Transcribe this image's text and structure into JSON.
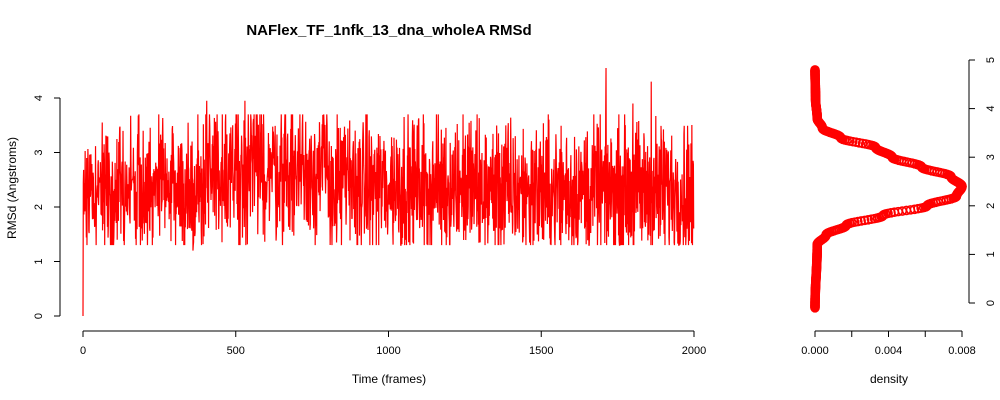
{
  "chart_data": [
    {
      "type": "line",
      "title": "NAFlex_TF_1nfk_13_dna_wholeA RMSd",
      "xlabel": "Time (frames)",
      "ylabel": "RMSd (Angstroms)",
      "xlim": [
        0,
        2000
      ],
      "ylim": [
        0,
        4
      ],
      "xticks": [
        "0",
        "500",
        "1000",
        "1500",
        "2000"
      ],
      "yticks": [
        "0",
        "1",
        "2",
        "3",
        "4"
      ],
      "grid": false,
      "line_color": "#ff0000",
      "series": [
        {
          "n_frames": 2000,
          "initial_value": 0.0,
          "mean": 2.45,
          "range": [
            1.2,
            4.55
          ],
          "segment_means": [
            {
              "x": [
                0,
                400
              ],
              "mean": 2.35
            },
            {
              "x": [
                400,
                800
              ],
              "mean": 2.7
            },
            {
              "x": [
                800,
                1300
              ],
              "mean": 2.4
            },
            {
              "x": [
                1300,
                2000
              ],
              "mean": 2.3
            }
          ],
          "peaks": [
            {
              "x": 405,
              "y": 3.95
            },
            {
              "x": 530,
              "y": 3.95
            },
            {
              "x": 1712,
              "y": 4.55
            },
            {
              "x": 1800,
              "y": 3.9
            },
            {
              "x": 1860,
              "y": 4.3
            }
          ],
          "minima": [
            {
              "x": 360,
              "y": 1.2
            },
            {
              "x": 1300,
              "y": 1.35
            },
            {
              "x": 1995,
              "y": 1.3
            }
          ]
        }
      ]
    },
    {
      "type": "scatter",
      "subtype": "density",
      "xlabel": "density",
      "ylabel": "",
      "xlim": [
        0,
        0.008
      ],
      "ylim": [
        0,
        5
      ],
      "xticks": [
        "0.000",
        "0.004",
        "0.008"
      ],
      "yticks": [
        "0",
        "1",
        "2",
        "3",
        "4",
        "5"
      ],
      "y_axis_side": "right",
      "grid": false,
      "marker_color": "#ff0000",
      "points": [
        {
          "rmsd": -0.1,
          "density": 0.0
        },
        {
          "rmsd": 1.2,
          "density": 0.00012
        },
        {
          "rmsd": 1.4,
          "density": 0.0006
        },
        {
          "rmsd": 1.6,
          "density": 0.0017
        },
        {
          "rmsd": 1.8,
          "density": 0.0037
        },
        {
          "rmsd": 2.0,
          "density": 0.0061
        },
        {
          "rmsd": 2.2,
          "density": 0.0077
        },
        {
          "rmsd": 2.4,
          "density": 0.008
        },
        {
          "rmsd": 2.6,
          "density": 0.0074
        },
        {
          "rmsd": 2.8,
          "density": 0.0058
        },
        {
          "rmsd": 3.0,
          "density": 0.0042
        },
        {
          "rmsd": 3.2,
          "density": 0.0033
        },
        {
          "rmsd": 3.4,
          "density": 0.0014
        },
        {
          "rmsd": 3.6,
          "density": 0.0004
        },
        {
          "rmsd": 3.8,
          "density": 0.00012
        },
        {
          "rmsd": 4.2,
          "density": 3e-05
        },
        {
          "rmsd": 4.8,
          "density": 0.0
        }
      ]
    }
  ]
}
